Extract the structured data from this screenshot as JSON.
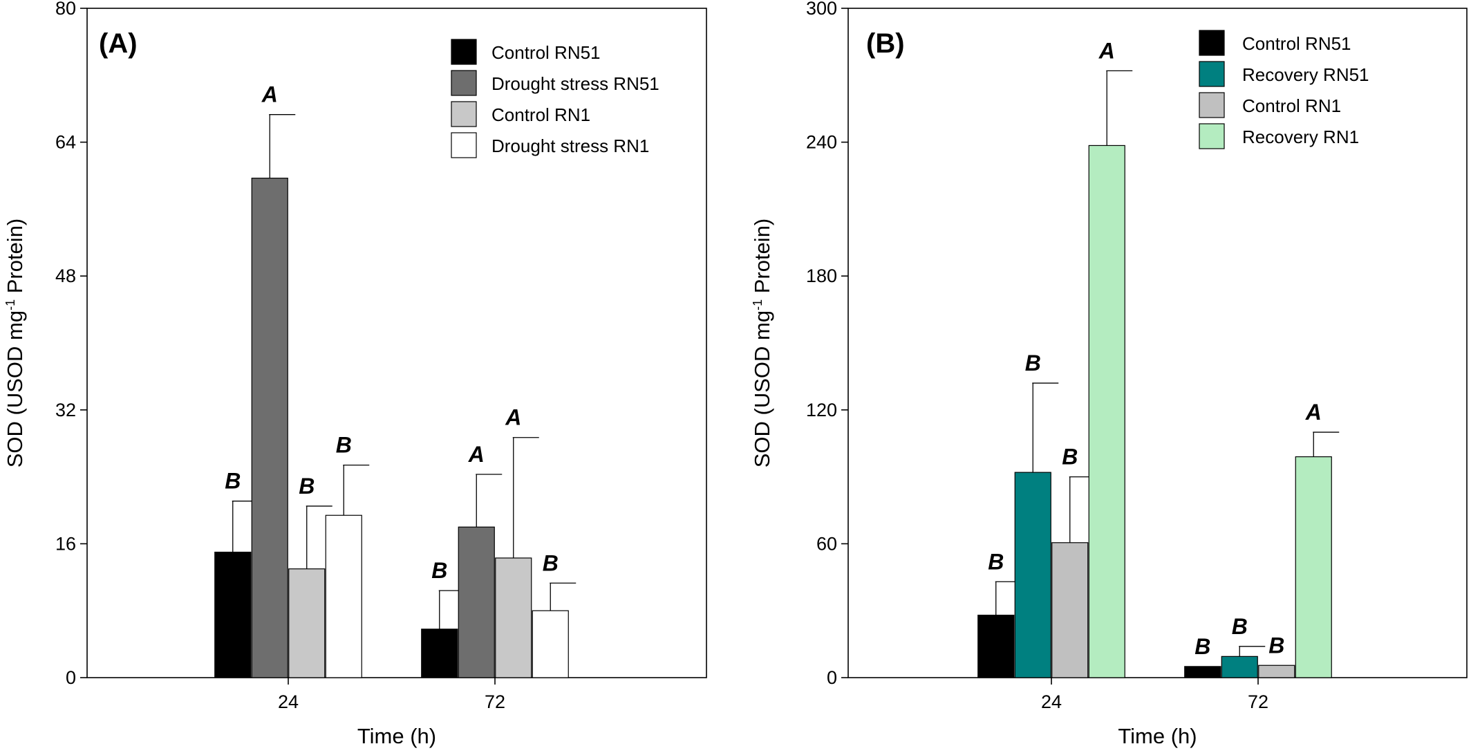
{
  "chart_data": [
    {
      "type": "bar",
      "panel_label": "(A)",
      "xlabel": "Time (h)",
      "ylabel_main": "SOD (USOD mg",
      "ylabel_sup": "-1",
      "ylabel_end": " Protein)",
      "ylim": [
        0,
        80
      ],
      "yticks": [
        0,
        16,
        32,
        48,
        64,
        80
      ],
      "categories": [
        "24",
        "72"
      ],
      "legend_position": "top-right",
      "series": [
        {
          "name": "Control RN51",
          "color": "#000000",
          "values": [
            15.0,
            5.8
          ],
          "errors": [
            6.1,
            4.6
          ],
          "letters": [
            "B",
            "B"
          ]
        },
        {
          "name": "Drought stress RN51",
          "color": "#6e6e6e",
          "values": [
            59.7,
            18.0
          ],
          "errors": [
            7.6,
            6.3
          ],
          "letters": [
            "A",
            "A"
          ]
        },
        {
          "name": "Control RN1",
          "color": "#c8c8c8",
          "values": [
            13.0,
            14.3
          ],
          "errors": [
            7.5,
            14.4
          ],
          "letters": [
            "B",
            "A"
          ]
        },
        {
          "name": "Drought stress RN1",
          "color": "#ffffff",
          "values": [
            19.4,
            8.0
          ],
          "errors": [
            6.0,
            3.3
          ],
          "letters": [
            "B",
            "B"
          ]
        }
      ]
    },
    {
      "type": "bar",
      "panel_label": "(B)",
      "xlabel": "Time (h)",
      "ylabel_main": "SOD (USOD mg",
      "ylabel_sup": "-1",
      "ylabel_end": " Protein)",
      "ylim": [
        0,
        300
      ],
      "yticks": [
        0,
        60,
        120,
        180,
        240,
        300
      ],
      "categories": [
        "24",
        "72"
      ],
      "legend_position": "top-center",
      "series": [
        {
          "name": "Control RN51",
          "color": "#000000",
          "values": [
            28,
            5
          ],
          "errors": [
            15,
            0
          ],
          "letters": [
            "B",
            "B"
          ]
        },
        {
          "name": "Recovery RN51",
          "color": "#008080",
          "values": [
            92,
            9.5
          ],
          "errors": [
            40,
            4.5
          ],
          "letters": [
            "B",
            "B"
          ]
        },
        {
          "name": "Control RN1",
          "color": "#c0c0c0",
          "values": [
            60.5,
            5.5
          ],
          "errors": [
            29.5,
            0
          ],
          "letters": [
            "B",
            "B"
          ]
        },
        {
          "name": "Recovery RN1",
          "color": "#b4ecc0",
          "values": [
            238.5,
            99
          ],
          "errors": [
            33.5,
            11
          ],
          "letters": [
            "A",
            "A"
          ]
        }
      ]
    }
  ]
}
